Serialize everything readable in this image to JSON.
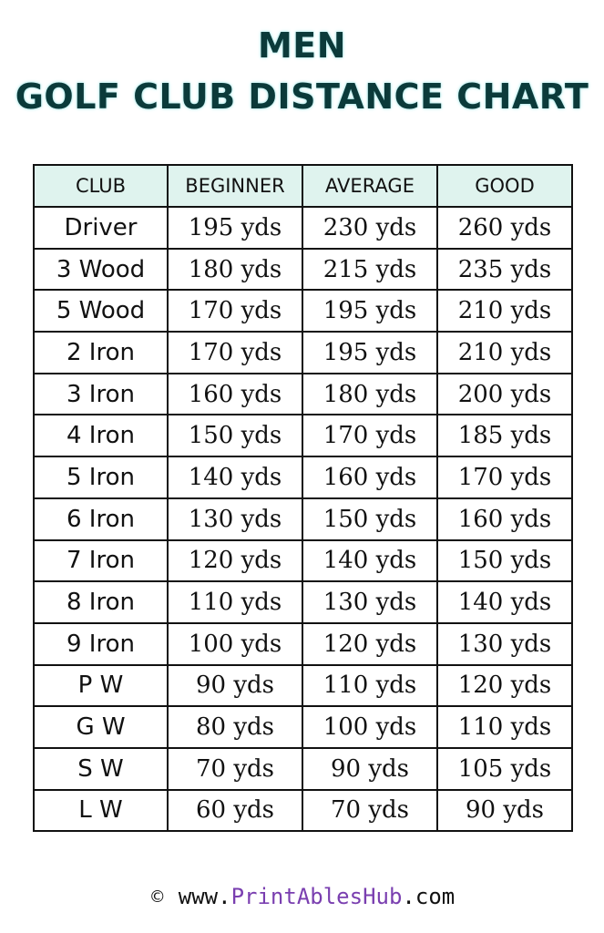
{
  "title": {
    "line1": "MEN",
    "line2": "GOLF CLUB DISTANCE CHART"
  },
  "table": {
    "headers": [
      "CLUB",
      "BEGINNER",
      "AVERAGE",
      "GOOD"
    ],
    "rows": [
      [
        "Driver",
        "195 yds",
        "230 yds",
        "260 yds"
      ],
      [
        "3 Wood",
        "180 yds",
        "215 yds",
        "235 yds"
      ],
      [
        "5 Wood",
        "170 yds",
        "195 yds",
        "210 yds"
      ],
      [
        "2 Iron",
        "170 yds",
        "195 yds",
        "210 yds"
      ],
      [
        "3 Iron",
        "160 yds",
        "180 yds",
        "200 yds"
      ],
      [
        "4 Iron",
        "150 yds",
        "170 yds",
        "185 yds"
      ],
      [
        "5 Iron",
        "140 yds",
        "160 yds",
        "170 yds"
      ],
      [
        "6 Iron",
        "130 yds",
        "150 yds",
        "160 yds"
      ],
      [
        "7 Iron",
        "120 yds",
        "140 yds",
        "150 yds"
      ],
      [
        "8 Iron",
        "110 yds",
        "130 yds",
        "140 yds"
      ],
      [
        "9 Iron",
        "100 yds",
        "120 yds",
        "130 yds"
      ],
      [
        "P W",
        "90 yds",
        "110 yds",
        "120 yds"
      ],
      [
        "G W",
        "80 yds",
        "100 yds",
        "110 yds"
      ],
      [
        "S W",
        "70 yds",
        "90 yds",
        "105 yds"
      ],
      [
        "L W",
        "60 yds",
        "70 yds",
        "90 yds"
      ]
    ]
  },
  "footer": {
    "copyright_symbol": "©",
    "prefix": "www.",
    "brand": "PrintAblesHub",
    "suffix": ".com"
  },
  "colors": {
    "header_fill": "#dff3ee",
    "title_color": "#0b3a3a",
    "brand_color": "#7a3fb0"
  }
}
